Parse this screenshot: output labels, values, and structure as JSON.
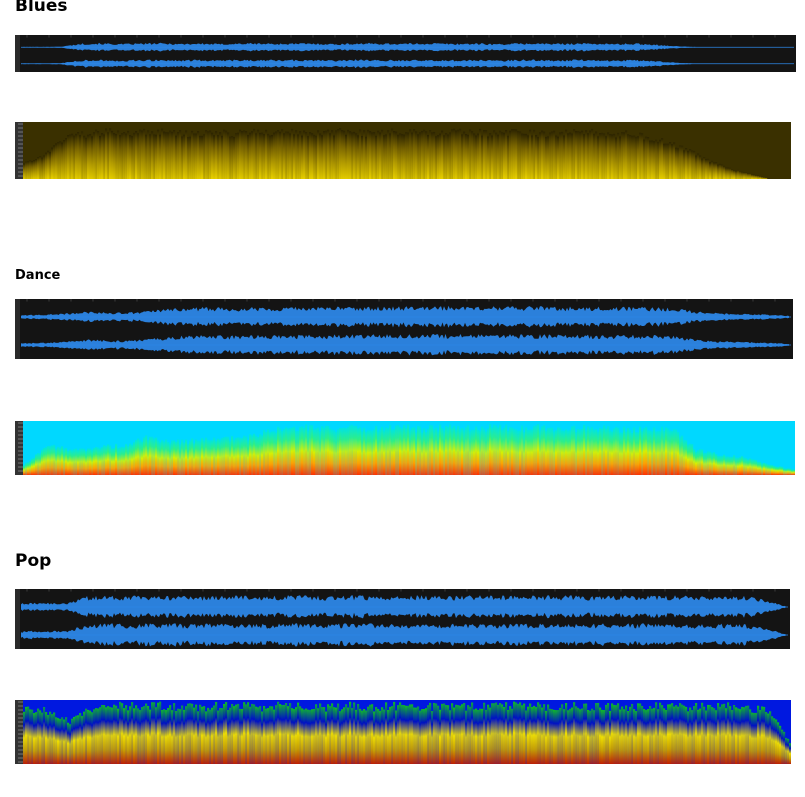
{
  "sections": [
    {
      "title": "Blues",
      "waveform": {
        "background": "#141414",
        "wave_color": "#2c86e6",
        "channels": 2,
        "envelope": [
          0.05,
          0.05,
          0.08,
          0.55,
          0.62,
          0.5,
          0.58,
          0.62,
          0.55,
          0.6,
          0.52,
          0.6,
          0.62,
          0.55,
          0.6,
          0.58,
          0.5,
          0.62,
          0.6,
          0.56,
          0.6,
          0.62,
          0.55,
          0.6,
          0.5,
          0.58,
          0.62,
          0.55,
          0.6,
          0.6,
          0.52,
          0.58,
          0.45,
          0.2,
          0.05,
          0.02,
          0.02,
          0.02,
          0.02,
          0.02
        ]
      },
      "spectrogram": {
        "palette": [
          "#2a2200",
          "#7a6500",
          "#b8a000",
          "#e8d000"
        ],
        "background": "#3a3000",
        "envelope": [
          0.3,
          0.45,
          0.8,
          0.85,
          0.9,
          0.85,
          0.9,
          0.88,
          0.85,
          0.9,
          0.86,
          0.9,
          0.88,
          0.9,
          0.85,
          0.9,
          0.88,
          0.86,
          0.9,
          0.88,
          0.85,
          0.9,
          0.88,
          0.86,
          0.9,
          0.85,
          0.88,
          0.9,
          0.85,
          0.86,
          0.8,
          0.7,
          0.55,
          0.35,
          0.2,
          0.1,
          0.0,
          0.0
        ]
      }
    },
    {
      "title": "Dance",
      "waveform": {
        "background": "#141414",
        "wave_color": "#2c86e6",
        "channels": 2,
        "envelope": [
          0.15,
          0.2,
          0.3,
          0.45,
          0.35,
          0.4,
          0.6,
          0.75,
          0.78,
          0.75,
          0.8,
          0.78,
          0.82,
          0.8,
          0.85,
          0.82,
          0.86,
          0.84,
          0.85,
          0.88,
          0.86,
          0.85,
          0.84,
          0.82,
          0.8,
          0.82,
          0.8,
          0.78,
          0.75,
          0.45,
          0.3,
          0.25,
          0.2,
          0.1
        ]
      },
      "spectrogram": {
        "palette": [
          "#00e5e0",
          "#30f080",
          "#d8f000",
          "#ffa000",
          "#ff3000"
        ],
        "background": "#00d8ff",
        "envelope": [
          0.2,
          0.6,
          0.5,
          0.55,
          0.6,
          0.75,
          0.65,
          0.7,
          0.72,
          0.75,
          0.9,
          0.95,
          0.92,
          0.95,
          0.93,
          0.95,
          0.92,
          0.96,
          0.94,
          0.95,
          0.93,
          0.95,
          0.92,
          0.95,
          0.9,
          0.92,
          0.93,
          0.5,
          0.4,
          0.35,
          0.2,
          0.1
        ]
      }
    },
    {
      "title": "Pop",
      "waveform": {
        "background": "#141414",
        "wave_color": "#2c86e6",
        "channels": 2,
        "envelope": [
          0.3,
          0.35,
          0.3,
          0.85,
          0.9,
          0.88,
          0.92,
          0.9,
          0.86,
          0.92,
          0.9,
          0.88,
          0.93,
          0.9,
          0.88,
          0.92,
          0.9,
          0.87,
          0.92,
          0.9,
          0.88,
          0.93,
          0.9,
          0.88,
          0.92,
          0.9,
          0.88,
          0.9,
          0.92,
          0.88,
          0.9,
          0.85,
          0.9,
          0.92,
          0.6,
          0.05
        ]
      },
      "spectrogram": {
        "palette": [
          "#10c020",
          "#0010c0",
          "#f0e000",
          "#c8a000",
          "#c02000"
        ],
        "background": "#0018e0",
        "envelope": [
          0.9,
          0.9,
          0.7,
          0.95,
          0.98,
          0.96,
          0.98,
          0.95,
          0.97,
          0.98,
          0.96,
          0.98,
          0.97,
          0.95,
          0.98,
          0.96,
          0.98,
          0.97,
          0.95,
          0.98,
          0.96,
          0.98,
          0.97,
          0.95,
          0.98,
          0.96,
          0.97,
          0.98,
          0.95,
          0.97,
          0.98,
          0.96,
          0.9,
          0.3
        ]
      }
    }
  ]
}
